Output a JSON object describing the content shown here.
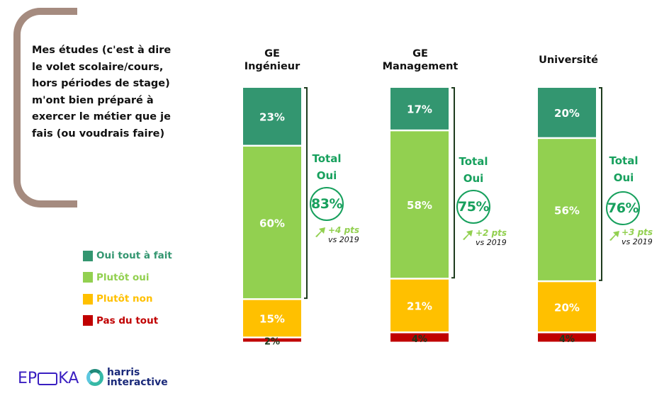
{
  "question": "Mes études (c'est à dire le volet scolaire/cours, hors périodes de stage) m'ont bien préparé à exercer le métier que je fais (ou voudrais faire)",
  "legend": [
    {
      "label": "Oui tout à fait",
      "color": "#339670"
    },
    {
      "label": "Plutôt oui",
      "color": "#92d050"
    },
    {
      "label": "Plutôt non",
      "color": "#ffc000"
    },
    {
      "label": "Pas du tout",
      "color": "#c00000"
    }
  ],
  "total_label_line1": "Total",
  "total_label_line2": "Oui",
  "vs_label": "vs 2019",
  "logos": {
    "epoka_left": "EP",
    "epoka_right": "KA",
    "harris_line1": "harris",
    "harris_line2": "interactive"
  },
  "chart_data": {
    "type": "bar",
    "stacked": true,
    "orientation": "vertical",
    "title": "Mes études (c'est à dire le volet scolaire/cours, hors périodes de stage) m'ont bien préparé à exercer le métier que je fais (ou voudrais faire)",
    "categories": [
      "GE Ingénieur",
      "GE Management",
      "Université"
    ],
    "category_title_lines": [
      [
        "GE",
        "Ingénieur"
      ],
      [
        "GE",
        "Management"
      ],
      [
        "Université"
      ]
    ],
    "series": [
      {
        "name": "Oui tout à fait",
        "values": [
          23,
          17,
          20
        ],
        "color": "#339670"
      },
      {
        "name": "Plutôt oui",
        "values": [
          60,
          58,
          56
        ],
        "color": "#92d050"
      },
      {
        "name": "Plutôt non",
        "values": [
          15,
          21,
          20
        ],
        "color": "#ffc000"
      },
      {
        "name": "Pas du tout",
        "values": [
          2,
          4,
          4
        ],
        "color": "#c00000"
      }
    ],
    "totals_oui": [
      {
        "value": "83%",
        "delta": "+4 pts"
      },
      {
        "value": "75%",
        "delta": "+2 pts"
      },
      {
        "value": "76%",
        "delta": "+3 pts"
      }
    ],
    "value_format": "percent",
    "ylim": [
      0,
      100
    ],
    "legend_position": "left",
    "grid": false,
    "xlabel": "",
    "ylabel": ""
  }
}
